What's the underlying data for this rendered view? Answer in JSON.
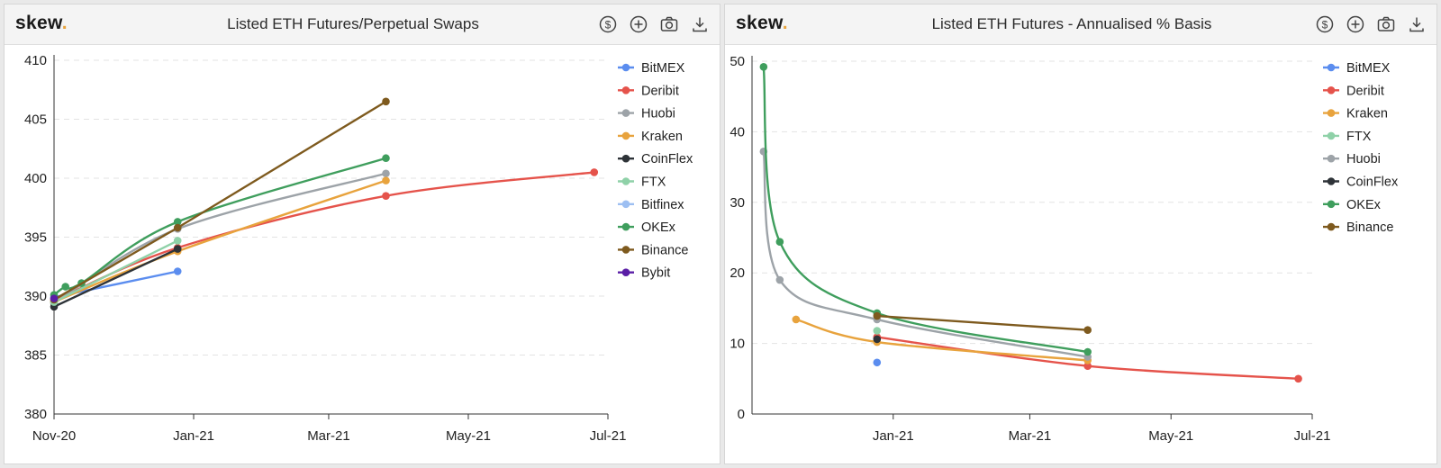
{
  "panels": [
    {
      "brand": "skew",
      "brand_dot": ".",
      "title": "Listed ETH Futures/Perpetual Swaps",
      "toolbar": [
        "dollar-icon",
        "plus-icon",
        "camera-icon",
        "download-icon"
      ]
    },
    {
      "brand": "skew",
      "brand_dot": ".",
      "title": "Listed ETH Futures - Annualised % Basis",
      "toolbar": [
        "dollar-icon",
        "plus-icon",
        "camera-icon",
        "download-icon"
      ]
    }
  ],
  "chart_data": [
    {
      "type": "line",
      "title": "Listed ETH Futures/Perpetual Swaps",
      "xlabel": "",
      "ylabel": "",
      "xlim": [
        "2020-11-01",
        "2021-07-01"
      ],
      "ylim": [
        380,
        410
      ],
      "x_ticks": [
        {
          "date": "2020-11-01",
          "label": "Nov-20"
        },
        {
          "date": "2021-01-01",
          "label": "Jan-21"
        },
        {
          "date": "2021-03-01",
          "label": "Mar-21"
        },
        {
          "date": "2021-05-01",
          "label": "May-21"
        },
        {
          "date": "2021-07-01",
          "label": "Jul-21"
        }
      ],
      "y_ticks": [
        380,
        385,
        390,
        395,
        400,
        405,
        410
      ],
      "grid": "horizontal dashed",
      "legend_position": "top-right",
      "series": [
        {
          "name": "BitMEX",
          "color": "#5b8def",
          "curve": false,
          "points": [
            [
              "2020-11-01",
              389.9
            ],
            [
              "2020-12-25",
              392.1
            ]
          ]
        },
        {
          "name": "Deribit",
          "color": "#e5534b",
          "curve": true,
          "points": [
            [
              "2020-11-01",
              389.6
            ],
            [
              "2020-12-25",
              394.1
            ],
            [
              "2021-03-26",
              398.5
            ],
            [
              "2021-06-25",
              400.5
            ]
          ]
        },
        {
          "name": "Huobi",
          "color": "#9da3a8",
          "curve": true,
          "points": [
            [
              "2020-11-01",
              389.4
            ],
            [
              "2020-12-25",
              395.7
            ],
            [
              "2021-03-26",
              400.4
            ]
          ]
        },
        {
          "name": "Kraken",
          "color": "#e8a33d",
          "curve": true,
          "points": [
            [
              "2020-11-01",
              389.5
            ],
            [
              "2020-12-25",
              393.8
            ],
            [
              "2021-03-26",
              399.8
            ]
          ]
        },
        {
          "name": "CoinFlex",
          "color": "#2e3338",
          "curve": false,
          "points": [
            [
              "2020-11-01",
              389.1
            ],
            [
              "2020-12-25",
              394.0
            ]
          ]
        },
        {
          "name": "FTX",
          "color": "#8fd1a8",
          "curve": false,
          "points": [
            [
              "2020-11-01",
              389.5
            ],
            [
              "2020-12-25",
              394.7
            ]
          ]
        },
        {
          "name": "Bitfinex",
          "color": "#9dbff2",
          "curve": false,
          "points": []
        },
        {
          "name": "OKEx",
          "color": "#3f9e5d",
          "curve": true,
          "points": [
            [
              "2020-11-01",
              390.1
            ],
            [
              "2020-11-06",
              390.8
            ],
            [
              "2020-11-13",
              391.1
            ],
            [
              "2020-12-25",
              396.3
            ],
            [
              "2021-03-26",
              401.7
            ]
          ]
        },
        {
          "name": "Binance",
          "color": "#7e5a1e",
          "curve": false,
          "points": [
            [
              "2020-11-01",
              389.7
            ],
            [
              "2020-12-25",
              395.8
            ],
            [
              "2021-03-26",
              406.5
            ]
          ]
        },
        {
          "name": "Bybit",
          "color": "#5a1ea6",
          "curve": false,
          "points": [
            [
              "2020-11-01",
              389.8
            ]
          ]
        }
      ]
    },
    {
      "type": "line",
      "title": "Listed ETH Futures - Annualised % Basis",
      "xlabel": "",
      "ylabel": "",
      "xlim": [
        "2020-11-01",
        "2021-07-01"
      ],
      "ylim": [
        0,
        50
      ],
      "x_ticks": [
        {
          "date": "2021-01-01",
          "label": "Jan-21"
        },
        {
          "date": "2021-03-01",
          "label": "Mar-21"
        },
        {
          "date": "2021-05-01",
          "label": "May-21"
        },
        {
          "date": "2021-07-01",
          "label": "Jul-21"
        }
      ],
      "y_ticks": [
        0,
        10,
        20,
        30,
        40,
        50
      ],
      "grid": "horizontal dashed",
      "legend_position": "top-right",
      "series": [
        {
          "name": "BitMEX",
          "color": "#5b8def",
          "curve": false,
          "points": [
            [
              "2020-12-25",
              7.3
            ]
          ]
        },
        {
          "name": "Deribit",
          "color": "#e5534b",
          "curve": true,
          "points": [
            [
              "2020-12-25",
              10.9
            ],
            [
              "2021-03-26",
              6.8
            ],
            [
              "2021-06-25",
              5.0
            ]
          ]
        },
        {
          "name": "Kraken",
          "color": "#e8a33d",
          "curve": true,
          "points": [
            [
              "2020-11-20",
              13.4
            ],
            [
              "2020-12-25",
              10.2
            ],
            [
              "2021-03-26",
              7.6
            ]
          ]
        },
        {
          "name": "FTX",
          "color": "#8fd1a8",
          "curve": false,
          "points": [
            [
              "2020-12-25",
              11.8
            ]
          ]
        },
        {
          "name": "Huobi",
          "color": "#9da3a8",
          "curve": true,
          "points": [
            [
              "2020-11-06",
              37.2
            ],
            [
              "2020-11-13",
              19.0
            ],
            [
              "2020-12-25",
              13.4
            ],
            [
              "2021-03-26",
              8.1
            ]
          ]
        },
        {
          "name": "CoinFlex",
          "color": "#2e3338",
          "curve": false,
          "points": [
            [
              "2020-12-25",
              10.6
            ]
          ]
        },
        {
          "name": "OKEx",
          "color": "#3f9e5d",
          "curve": true,
          "points": [
            [
              "2020-11-06",
              49.2
            ],
            [
              "2020-11-13",
              24.4
            ],
            [
              "2020-12-25",
              14.3
            ],
            [
              "2021-03-26",
              8.8
            ]
          ]
        },
        {
          "name": "Binance",
          "color": "#7e5a1e",
          "curve": false,
          "points": [
            [
              "2020-12-25",
              13.9
            ],
            [
              "2021-03-26",
              11.9
            ]
          ]
        }
      ]
    }
  ]
}
